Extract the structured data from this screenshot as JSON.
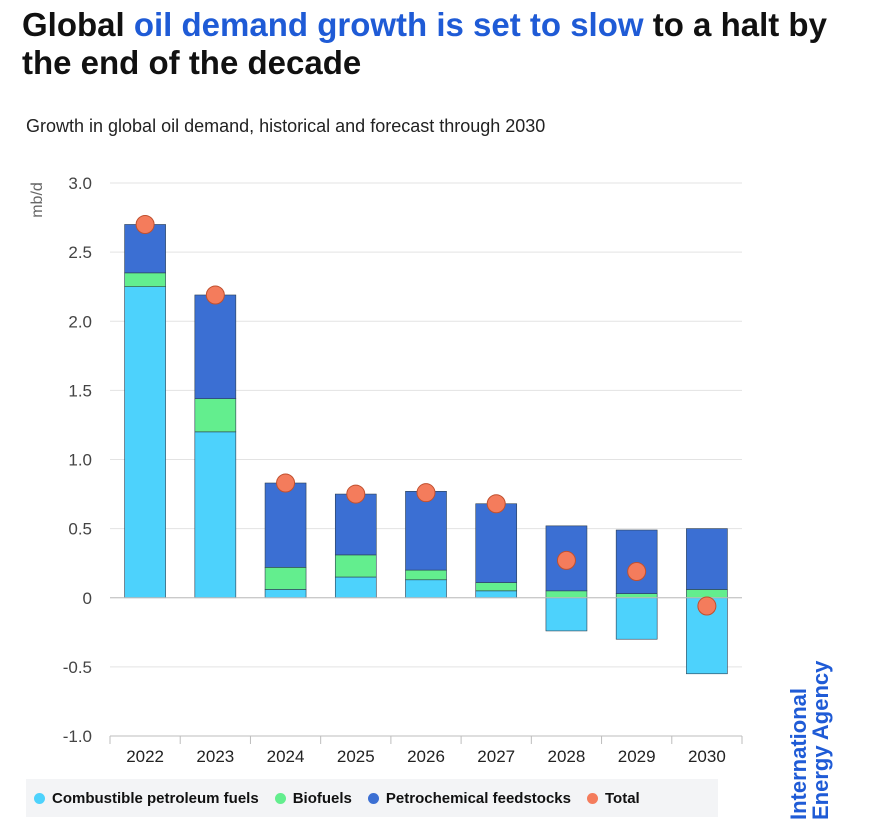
{
  "header": {
    "title_prefix": "Global ",
    "title_highlight": "oil demand growth is set to slow",
    "title_suffix": " to a halt by the end of the decade",
    "subtitle": "Growth in global oil demand, historical and forecast through 2030"
  },
  "logo": {
    "line1": "International",
    "line2": "Energy Agency"
  },
  "colors": {
    "combustible": "#4dd2fc",
    "biofuels": "#63ee8e",
    "petrochemical": "#3b6fd3",
    "total": "#f47c5c",
    "highlight": "#1f5bd6"
  },
  "chart_data": {
    "type": "bar",
    "stacked": true,
    "ylabel": "mb/d",
    "ylim": [
      -1.0,
      3.0
    ],
    "yticks": [
      -1.0,
      -0.5,
      0,
      0.5,
      1.0,
      1.5,
      2.0,
      2.5,
      3.0
    ],
    "ytick_labels": [
      "-1.0",
      "-0.5",
      "0",
      "0.5",
      "1.0",
      "1.5",
      "2.0",
      "2.5",
      "3.0"
    ],
    "grid": true,
    "legend_placement": "bottom",
    "categories": [
      "2022",
      "2023",
      "2024",
      "2025",
      "2026",
      "2027",
      "2028",
      "2029",
      "2030"
    ],
    "series": [
      {
        "name": "Combustible petroleum fuels",
        "key": "combustible",
        "values": [
          2.25,
          1.2,
          0.06,
          0.15,
          0.13,
          0.05,
          -0.24,
          -0.3,
          -0.55
        ]
      },
      {
        "name": "Biofuels",
        "key": "biofuels",
        "values": [
          0.1,
          0.24,
          0.16,
          0.16,
          0.07,
          0.06,
          0.05,
          0.03,
          0.06
        ]
      },
      {
        "name": "Petrochemical feedstocks",
        "key": "petrochemical",
        "values": [
          0.35,
          0.75,
          0.61,
          0.44,
          0.57,
          0.57,
          0.47,
          0.46,
          0.44
        ]
      },
      {
        "name": "Total",
        "key": "total",
        "type": "scatter",
        "values": [
          2.7,
          2.19,
          0.83,
          0.75,
          0.76,
          0.68,
          0.27,
          0.19,
          -0.06
        ]
      }
    ]
  }
}
